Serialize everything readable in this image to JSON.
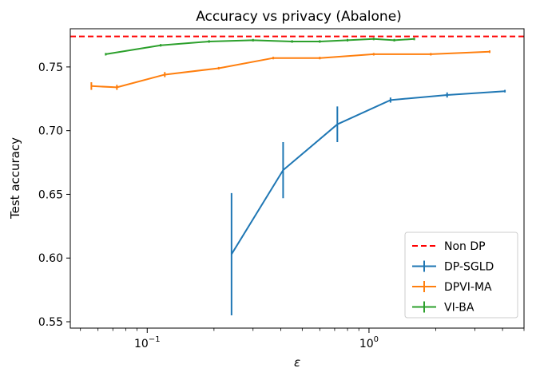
{
  "chart_data": {
    "type": "line",
    "title": "Accuracy vs privacy (Abalone)",
    "xlabel": "ε",
    "ylabel": "Test accuracy",
    "xscale": "log",
    "xlim": [
      0.045,
      5.0
    ],
    "ylim": [
      0.545,
      0.78
    ],
    "grid": false,
    "legend_position": "lower right",
    "x_ticks": [
      {
        "value": 0.1,
        "base": "10",
        "exp": "−1"
      },
      {
        "value": 1.0,
        "base": "10",
        "exp": "0"
      }
    ],
    "y_ticks": [
      {
        "value": 0.55,
        "label": "0.55"
      },
      {
        "value": 0.6,
        "label": "0.60"
      },
      {
        "value": 0.65,
        "label": "0.65"
      },
      {
        "value": 0.7,
        "label": "0.70"
      },
      {
        "value": 0.75,
        "label": "0.75"
      }
    ],
    "reference_line": {
      "name": "Non DP",
      "y": 0.774,
      "color": "#ff0000",
      "style": "dashed"
    },
    "series": [
      {
        "name": "DP-SGLD",
        "color": "#1f77b4",
        "x": [
          0.24,
          0.41,
          0.72,
          1.25,
          2.25,
          4.1
        ],
        "y": [
          0.603,
          0.669,
          0.705,
          0.724,
          0.728,
          0.731
        ],
        "err": [
          0.048,
          0.022,
          0.014,
          0.002,
          0.002,
          0.001
        ]
      },
      {
        "name": "DPVI-MA",
        "color": "#ff7f0e",
        "x": [
          0.056,
          0.073,
          0.12,
          0.21,
          0.37,
          0.6,
          1.05,
          1.9,
          3.5
        ],
        "y": [
          0.735,
          0.734,
          0.744,
          0.749,
          0.757,
          0.757,
          0.76,
          0.76,
          0.762
        ],
        "err": [
          0.003,
          0.002,
          0.002,
          0.001,
          0.001,
          0.001,
          0.001,
          0.001,
          0.001
        ]
      },
      {
        "name": "VI-BA",
        "color": "#2ca02c",
        "x": [
          0.065,
          0.115,
          0.19,
          0.3,
          0.45,
          0.6,
          0.8,
          1.05,
          1.3,
          1.6
        ],
        "y": [
          0.76,
          0.767,
          0.77,
          0.771,
          0.77,
          0.77,
          0.771,
          0.772,
          0.771,
          0.772
        ],
        "err": [
          0.001,
          0.001,
          0.001,
          0.001,
          0.001,
          0.001,
          0.001,
          0.001,
          0.001,
          0.001
        ]
      }
    ]
  }
}
